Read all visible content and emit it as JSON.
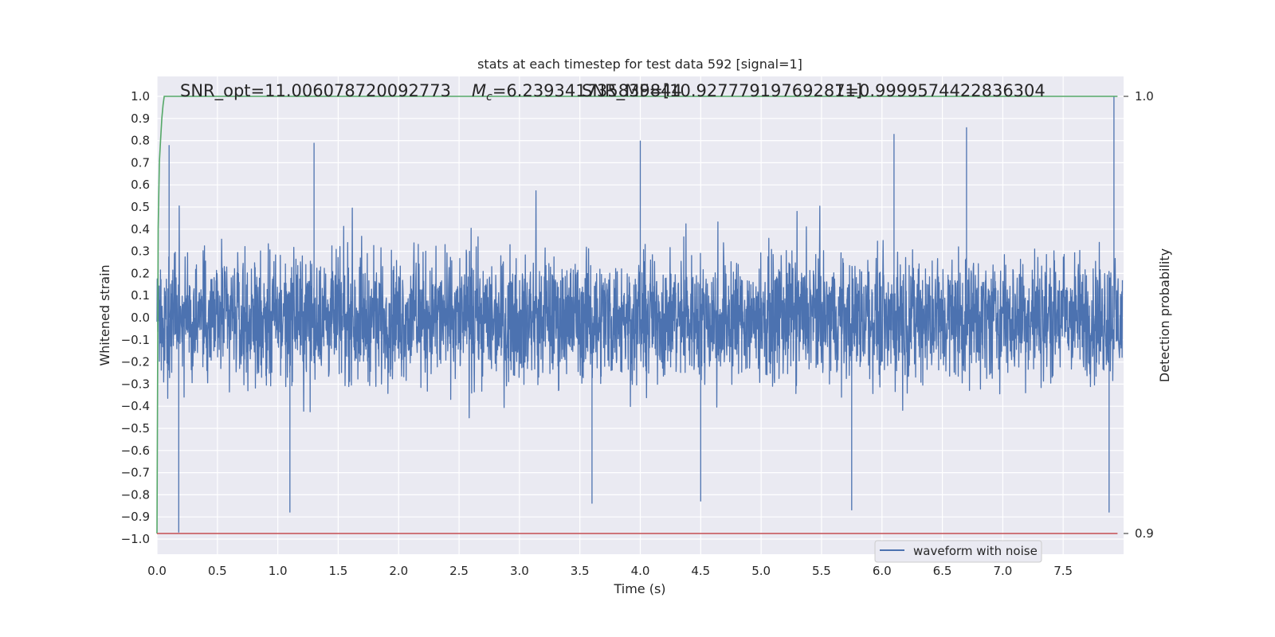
{
  "chart_data": {
    "type": "line",
    "title": "stats at each timestep for test data 592 [signal=1]",
    "xlabel": "Time (s)",
    "ylabel": "Whitened strain",
    "ylabel_right": "Detection probability",
    "xlim": [
      0.0,
      8.0
    ],
    "ylim": [
      -1.08,
      1.08
    ],
    "ylim_right": [
      0.895,
      1.002
    ],
    "x_ticks": [
      "0.0",
      "0.5",
      "1.0",
      "1.5",
      "2.0",
      "2.5",
      "3.0",
      "3.5",
      "4.0",
      "4.5",
      "5.0",
      "5.5",
      "6.0",
      "6.5",
      "7.0",
      "7.5"
    ],
    "y_ticks": [
      "1.0",
      "0.9",
      "0.8",
      "0.7",
      "0.6",
      "0.5",
      "0.4",
      "0.3",
      "0.2",
      "0.1",
      "0.0",
      "-0.1",
      "-0.2",
      "-0.3",
      "-0.4",
      "-0.5",
      "-0.6",
      "-0.7",
      "-0.8",
      "-0.9",
      "-1.0"
    ],
    "y_right_ticks": [
      "1.0",
      "0.9"
    ],
    "grid": true,
    "legend_position": "bottom-right",
    "annotations": [
      {
        "text": "SNR_opt=11.006078720092773"
      },
      {
        "text": "M_c=6.239341735839844",
        "symbol": "M",
        "subscript": "c",
        "value": "=6.239341735839844"
      },
      {
        "text": "SNR_MF=[10.927779197692871]"
      },
      {
        "text": "1=0.9999574422836304"
      }
    ],
    "series": [
      {
        "name": "waveform with noise",
        "axis": "left",
        "color": "#4c72b0",
        "kind": "noisy_waveform",
        "amplitude_envelope": [
          0.62,
          0.8
        ],
        "peaks": [
          {
            "x": 0.18,
            "y": -0.97
          },
          {
            "x": 0.1,
            "y": 0.78
          },
          {
            "x": 1.1,
            "y": -0.88
          },
          {
            "x": 1.3,
            "y": 0.79
          },
          {
            "x": 3.6,
            "y": -0.84
          },
          {
            "x": 4.0,
            "y": 0.8
          },
          {
            "x": 4.5,
            "y": -0.83
          },
          {
            "x": 5.75,
            "y": -0.87
          },
          {
            "x": 6.1,
            "y": 0.83
          },
          {
            "x": 6.7,
            "y": 0.86
          },
          {
            "x": 7.92,
            "y": 1.0
          },
          {
            "x": 7.88,
            "y": -0.88
          }
        ]
      },
      {
        "name": "",
        "axis": "right",
        "color": "#55a868",
        "x": [
          0.0,
          0.01,
          0.02,
          0.03,
          0.04,
          0.05,
          0.06,
          0.08,
          0.2,
          1.0,
          2.0,
          3.0,
          4.0,
          5.0,
          6.0,
          7.0,
          7.95
        ],
        "values": [
          0.9,
          0.97,
          0.985,
          0.99,
          0.995,
          0.998,
          1.0,
          1.0,
          1.0,
          1.0,
          1.0,
          1.0,
          1.0,
          1.0,
          1.0,
          1.0,
          1.0
        ]
      },
      {
        "name": "",
        "axis": "right",
        "color": "#c44e52",
        "x": [
          0.0,
          7.95
        ],
        "values": [
          0.9,
          0.9
        ]
      }
    ]
  }
}
